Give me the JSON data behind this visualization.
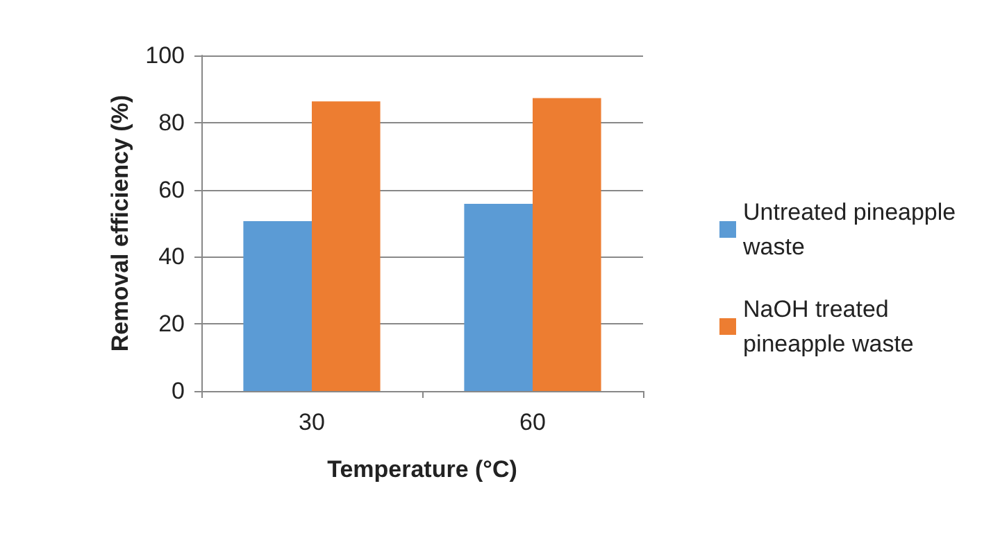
{
  "chart_data": {
    "type": "bar",
    "xlabel": "Temperature (°C)",
    "ylabel": "Removal efficiency (%)",
    "categories": [
      "30",
      "60"
    ],
    "series": [
      {
        "name": "Untreated pineapple waste",
        "color": "#5b9bd5",
        "values": [
          50.6,
          55.8
        ]
      },
      {
        "name": "NaOH treated pineapple waste",
        "color": "#ed7d31",
        "values": [
          86.3,
          87.3
        ]
      }
    ],
    "ylim": [
      0,
      100
    ],
    "yticks": [
      0,
      20,
      40,
      60,
      80,
      100
    ],
    "grid": "y",
    "legend": "right"
  }
}
